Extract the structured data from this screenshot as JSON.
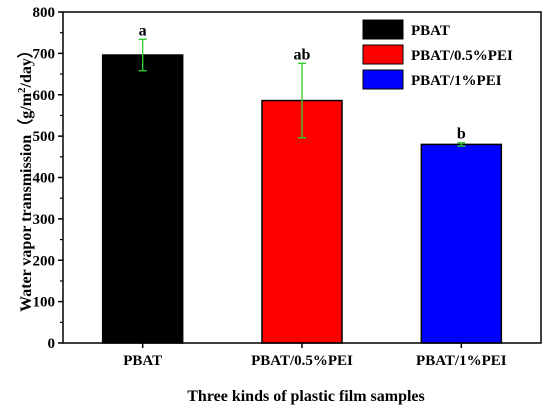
{
  "chart_data": {
    "type": "bar",
    "categories": [
      "PBAT",
      "PBAT/0.5%PEI",
      "PBAT/1%PEI"
    ],
    "values": [
      696,
      586,
      480
    ],
    "errors": [
      38,
      90,
      4
    ],
    "significance": [
      "a",
      "ab",
      "b"
    ],
    "bar_colors": [
      "#000000",
      "#ff0000",
      "#0000ff"
    ],
    "errorbar_color": "#33cc33",
    "legend": {
      "placement": "top-right",
      "entries": [
        {
          "label": "PBAT",
          "color": "#000000"
        },
        {
          "label": "PBAT/0.5%PEI",
          "color": "#ff0000"
        },
        {
          "label": "PBAT/1%PEI",
          "color": "#0000ff"
        }
      ]
    },
    "title": "",
    "xlabel": "Three kinds of plastic film samples",
    "ylabel_main": "Water vapor transmission（g/m",
    "ylabel_sup": "2",
    "ylabel_tail": "/day）",
    "ylim": [
      0,
      800
    ],
    "yticks": [
      0,
      100,
      200,
      300,
      400,
      500,
      600,
      700,
      800
    ],
    "grid": false
  }
}
